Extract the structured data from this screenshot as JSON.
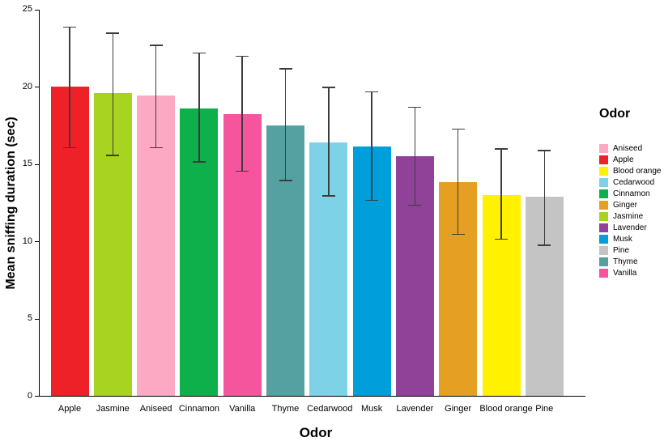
{
  "chart_data": {
    "type": "bar",
    "title": "",
    "xlabel": "Odor",
    "ylabel": "Mean sniffing duration (sec)",
    "ylim": [
      0,
      25
    ],
    "yticks": [
      0,
      5,
      10,
      15,
      20,
      25
    ],
    "grid": false,
    "legend_title": "Odor",
    "legend_position": "right",
    "categories": [
      "Apple",
      "Jasmine",
      "Aniseed",
      "Cinnamon",
      "Vanilla",
      "Thyme",
      "Cedarwood",
      "Musk",
      "Lavender",
      "Ginger",
      "Blood orange",
      "Pine"
    ],
    "values": [
      20.0,
      19.6,
      19.4,
      18.6,
      18.2,
      17.5,
      16.4,
      16.1,
      15.5,
      13.8,
      13.0,
      12.9
    ],
    "error_low": [
      16.0,
      15.5,
      16.0,
      15.1,
      14.5,
      13.9,
      12.9,
      12.6,
      12.3,
      10.4,
      10.1,
      9.7
    ],
    "error_high": [
      23.9,
      23.5,
      22.7,
      22.2,
      22.0,
      21.2,
      20.0,
      19.7,
      18.7,
      17.3,
      16.0,
      15.9
    ],
    "colors": {
      "Apple": "#EE2128",
      "Jasmine": "#A9D321",
      "Aniseed": "#FCA9C4",
      "Cinnamon": "#0DB04B",
      "Vanilla": "#F4559D",
      "Thyme": "#55A0A0",
      "Cedarwood": "#7DD2E7",
      "Musk": "#009EDB",
      "Lavender": "#8F4298",
      "Ginger": "#E5A024",
      "Blood orange": "#FFF100",
      "Pine": "#C4C4C4"
    },
    "legend_items": [
      {
        "label": "Aniseed",
        "color": "#FCA9C4"
      },
      {
        "label": "Apple",
        "color": "#EE2128"
      },
      {
        "label": "Blood orange",
        "color": "#FFF100"
      },
      {
        "label": "Cedarwood",
        "color": "#7DD2E7"
      },
      {
        "label": "Cinnamon",
        "color": "#0DB04B"
      },
      {
        "label": "Ginger",
        "color": "#E5A024"
      },
      {
        "label": "Jasmine",
        "color": "#A9D321"
      },
      {
        "label": "Lavender",
        "color": "#8F4298"
      },
      {
        "label": "Musk",
        "color": "#009EDB"
      },
      {
        "label": "Pine",
        "color": "#C4C4C4"
      },
      {
        "label": "Thyme",
        "color": "#55A0A0"
      },
      {
        "label": "Vanilla",
        "color": "#F4559D"
      }
    ]
  }
}
